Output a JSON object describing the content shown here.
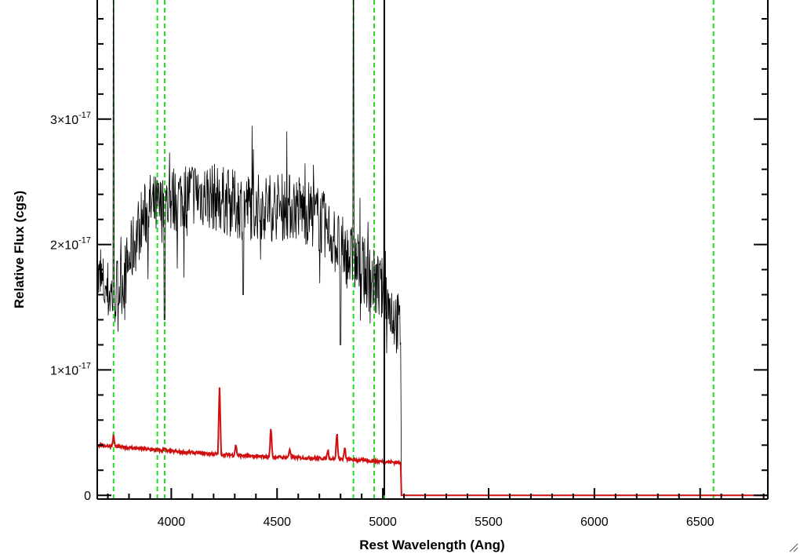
{
  "chart_data": {
    "type": "line",
    "title": "",
    "xlabel": "Rest Wavelength (Ang)",
    "ylabel": "Relative Flux (cgs)",
    "xlim": [
      3650,
      6820
    ],
    "ylim": [
      -3e-19,
      3.95e-17
    ],
    "x_ticks": [
      {
        "value": 4000,
        "label": "4000"
      },
      {
        "value": 4500,
        "label": "4500"
      },
      {
        "value": 5000,
        "label": "5000"
      },
      {
        "value": 5500,
        "label": "5500"
      },
      {
        "value": 6000,
        "label": "6000"
      },
      {
        "value": 6500,
        "label": "6500"
      }
    ],
    "y_ticks": [
      {
        "value": 0,
        "mant": "0",
        "exp": ""
      },
      {
        "value": 1e-17,
        "mant": "1×10",
        "exp": "-17"
      },
      {
        "value": 2e-17,
        "mant": "2×10",
        "exp": "-17"
      },
      {
        "value": 3e-17,
        "mant": "3×10",
        "exp": "-17"
      }
    ],
    "x_minor_step": 100,
    "y_minor_step": 2e-18,
    "grid": false,
    "legend": "none",
    "series": [
      {
        "color": "#000000",
        "style": "noisy-spectrum",
        "points": [
          [
            3650,
            1.72e-17
          ],
          [
            3700,
            1.62e-17
          ],
          [
            3730,
            1.6e-17
          ],
          [
            3780,
            1.75e-17
          ],
          [
            3850,
            2.15e-17
          ],
          [
            3900,
            2.3e-17
          ],
          [
            3950,
            2.28e-17
          ],
          [
            4000,
            2.35e-17
          ],
          [
            4100,
            2.42e-17
          ],
          [
            4200,
            2.38e-17
          ],
          [
            4300,
            2.32e-17
          ],
          [
            4400,
            2.3e-17
          ],
          [
            4500,
            2.3e-17
          ],
          [
            4600,
            2.3e-17
          ],
          [
            4700,
            2.2e-17
          ],
          [
            4800,
            1.97e-17
          ],
          [
            4900,
            1.8e-17
          ],
          [
            5000,
            1.62e-17
          ],
          [
            5050,
            1.45e-17
          ],
          [
            5085,
            1.3e-17
          ],
          [
            5088,
            0
          ],
          [
            6820,
            0
          ]
        ],
        "spikes": [
          [
            3727,
            4.2e-17
          ],
          [
            4861,
            4e-17
          ],
          [
            5007,
            4e-17
          ],
          [
            3968,
            1.4e-17
          ],
          [
            4340,
            1.6e-17
          ],
          [
            4800,
            1.2e-17
          ]
        ]
      },
      {
        "color": "#d01010",
        "style": "smooth-spectrum",
        "points": [
          [
            3650,
            4e-18
          ],
          [
            3800,
            3.8e-18
          ],
          [
            4000,
            3.5e-18
          ],
          [
            4200,
            3.3e-18
          ],
          [
            4400,
            3.1e-18
          ],
          [
            4600,
            3e-18
          ],
          [
            4800,
            2.9e-18
          ],
          [
            5000,
            2.7e-18
          ],
          [
            5085,
            2.6e-18
          ],
          [
            5088,
            0
          ],
          [
            6820,
            0
          ]
        ],
        "emission_lines": [
          [
            3727,
            4.7e-18
          ],
          [
            3968,
            3.8e-18
          ],
          [
            4228,
            8.5e-18
          ],
          [
            4305,
            4e-18
          ],
          [
            4471,
            5.3e-18
          ],
          [
            4560,
            3.7e-18
          ],
          [
            4740,
            3.6e-18
          ],
          [
            4783,
            4.9e-18
          ],
          [
            4820,
            3.7e-18
          ]
        ]
      }
    ],
    "reference_lines": {
      "color": "#22dd22",
      "style": "dashed",
      "x": [
        3727,
        3934,
        3969,
        4861,
        4959,
        5007,
        6563
      ]
    },
    "marker_lines": {
      "color": "#000000",
      "style": "solid",
      "x": [
        5007
      ]
    }
  }
}
